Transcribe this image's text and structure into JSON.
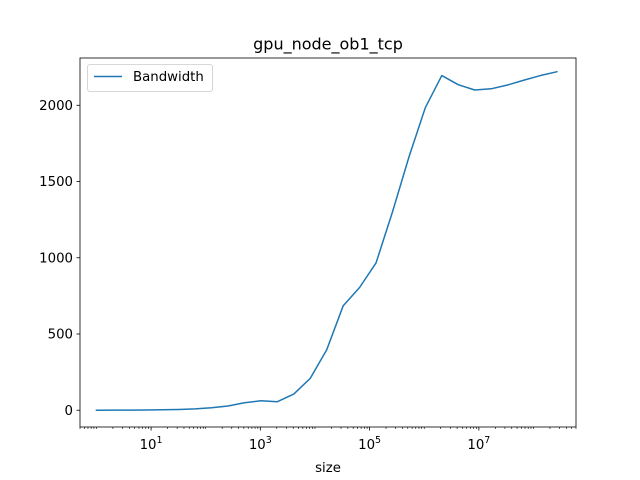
{
  "chart_data": {
    "type": "line",
    "title": "gpu_node_ob1_tcp",
    "xlabel": "size",
    "ylabel": "",
    "xscale": "log",
    "xlim": [
      0.5,
      600000000
    ],
    "ylim": [
      -110,
      2310
    ],
    "grid": false,
    "legend": {
      "placement": "top-left"
    },
    "x_ticks": [
      {
        "value": 10,
        "base": "10",
        "exp": "1"
      },
      {
        "value": 1000,
        "base": "10",
        "exp": "3"
      },
      {
        "value": 100000,
        "base": "10",
        "exp": "5"
      },
      {
        "value": 10000000,
        "base": "10",
        "exp": "7"
      }
    ],
    "y_ticks": [
      {
        "value": 0,
        "label": "0"
      },
      {
        "value": 500,
        "label": "500"
      },
      {
        "value": 1000,
        "label": "1000"
      },
      {
        "value": 1500,
        "label": "1500"
      },
      {
        "value": 2000,
        "label": "2000"
      }
    ],
    "series": [
      {
        "name": "Bandwidth",
        "color": "#1f77b4",
        "x": [
          1,
          2,
          4,
          8,
          16,
          32,
          64,
          128,
          256,
          512,
          1024,
          2048,
          4096,
          8192,
          16384,
          32768,
          65536,
          131072,
          262144,
          524288,
          1048576,
          2097152,
          4194304,
          8388608,
          16777216,
          33554432,
          67108864,
          134217728,
          268435456
        ],
        "y": [
          0.2,
          0.4,
          0.8,
          1.5,
          3,
          5,
          9,
          16,
          28,
          49,
          62,
          56,
          106,
          209,
          396,
          684,
          805,
          966,
          1300,
          1660,
          1985,
          2195,
          2135,
          2100,
          2108,
          2133,
          2165,
          2195,
          2220
        ]
      }
    ]
  }
}
